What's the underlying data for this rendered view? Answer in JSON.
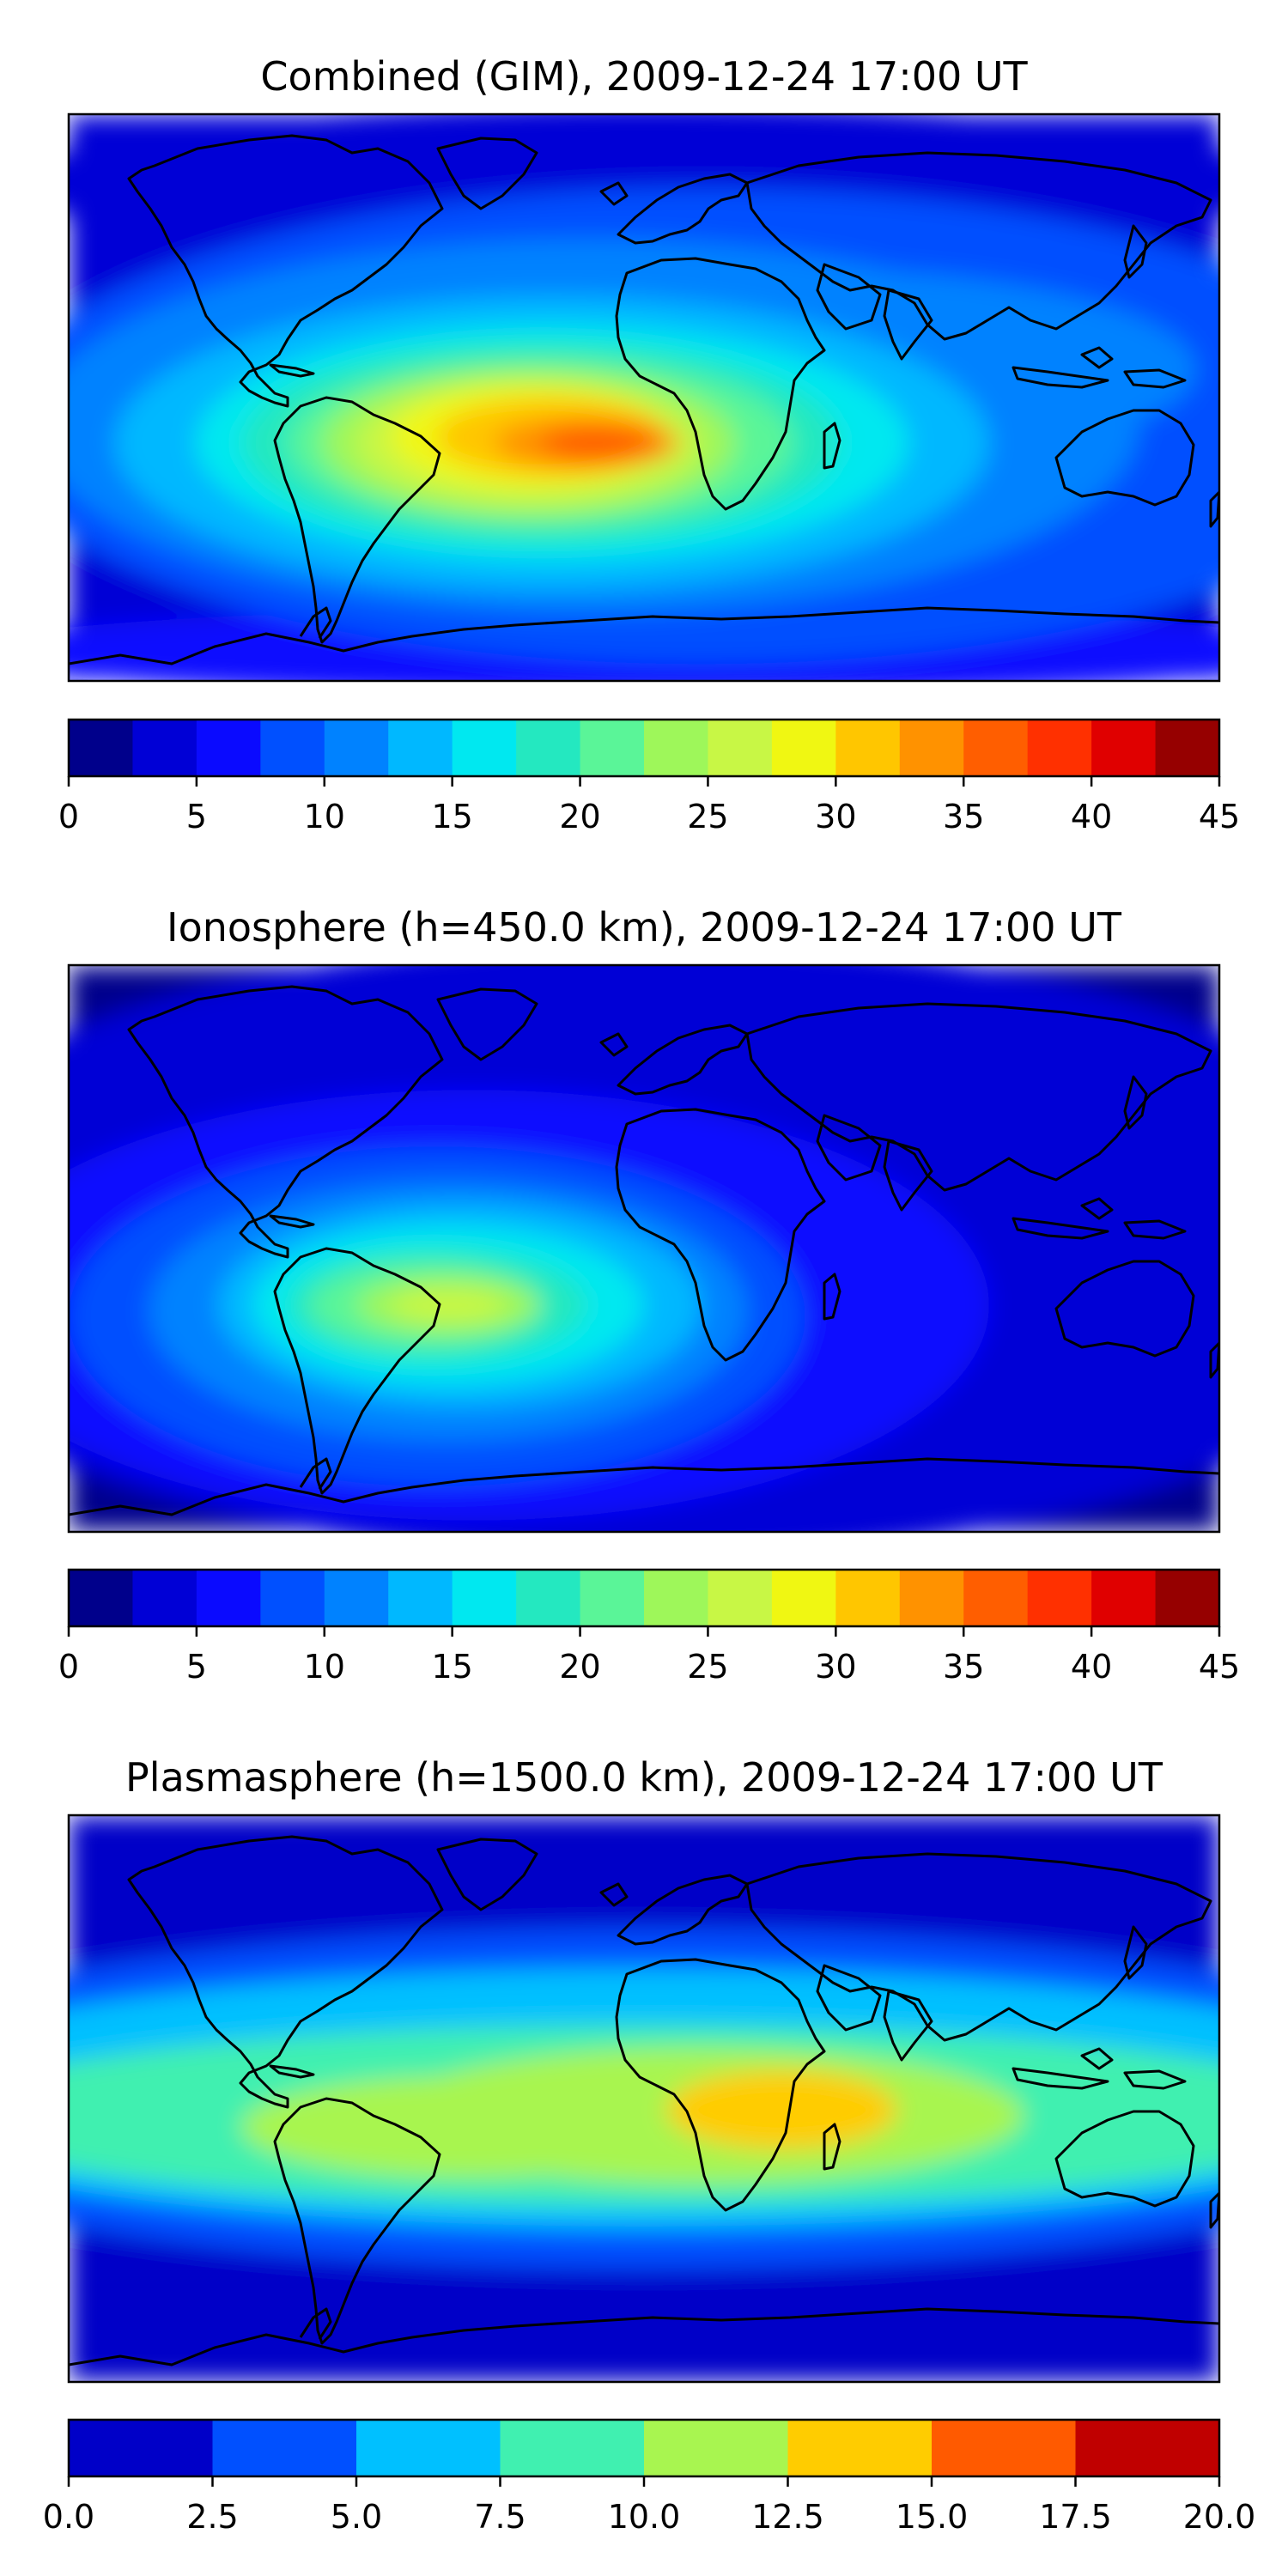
{
  "chart_data": [
    {
      "type": "heatmap",
      "title": "Combined (GIM), 2009-12-24 17:00 UT",
      "colorbar": {
        "levels": [
          0,
          2.5,
          5,
          7.5,
          10,
          12.5,
          15,
          17.5,
          20,
          22.5,
          25,
          27.5,
          30,
          32.5,
          35,
          37.5,
          40,
          42.5,
          45
        ],
        "ticks": [
          "0",
          "5",
          "10",
          "15",
          "20",
          "25",
          "30",
          "35",
          "40",
          "45"
        ],
        "colors": [
          "#00008b",
          "#0000d6",
          "#0a0aff",
          "#0050ff",
          "#0082ff",
          "#00b8ff",
          "#00e8f0",
          "#24e8c0",
          "#5af598",
          "#9ef75a",
          "#c8f745",
          "#f0f712",
          "#ffc600",
          "#ff9200",
          "#ff5e00",
          "#ff3000",
          "#e00000",
          "#960000"
        ]
      },
      "max_value_region": "South Atlantic / southern Africa",
      "peak_value": 36
    },
    {
      "type": "heatmap",
      "title": "Ionosphere  (h=450.0 km), 2009-12-24 17:00 UT",
      "colorbar": {
        "levels": [
          0,
          2.5,
          5,
          7.5,
          10,
          12.5,
          15,
          17.5,
          20,
          22.5,
          25,
          27.5,
          30,
          32.5,
          35,
          37.5,
          40,
          42.5,
          45
        ],
        "ticks": [
          "0",
          "5",
          "10",
          "15",
          "20",
          "25",
          "30",
          "35",
          "40",
          "45"
        ],
        "colors": [
          "#00008b",
          "#0000d6",
          "#0a0aff",
          "#0050ff",
          "#0082ff",
          "#00b8ff",
          "#00e8f0",
          "#24e8c0",
          "#5af598",
          "#9ef75a",
          "#c8f745",
          "#f0f712",
          "#ffc600",
          "#ff9200",
          "#ff5e00",
          "#ff3000",
          "#e00000",
          "#960000"
        ]
      },
      "max_value_region": "South America / South Atlantic",
      "peak_value": 27
    },
    {
      "type": "heatmap",
      "title": "Plasmasphere (h=1500.0 km), 2009-12-24 17:00 UT",
      "colorbar": {
        "levels": [
          0,
          2.5,
          5,
          7.5,
          10,
          12.5,
          15,
          17.5,
          20
        ],
        "ticks": [
          "0.0",
          "2.5",
          "5.0",
          "7.5",
          "10.0",
          "12.5",
          "15.0",
          "17.5",
          "20.0"
        ],
        "colors": [
          "#0000c8",
          "#0050ff",
          "#00c0ff",
          "#40f0b0",
          "#a8f550",
          "#ffcc00",
          "#ff5a00",
          "#c00000"
        ]
      },
      "max_value_region": "East Africa",
      "peak_value": 14
    }
  ]
}
